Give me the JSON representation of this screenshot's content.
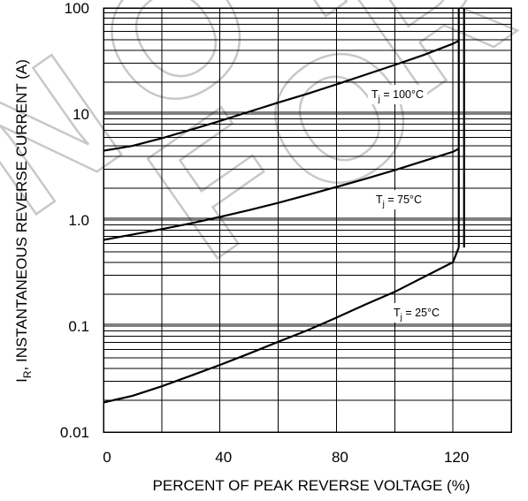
{
  "chart_data": {
    "type": "line",
    "title": "",
    "xlabel": "PERCENT OF PEAK REVERSE VOLTAGE (%)",
    "ylabel_main": "I",
    "ylabel_sub": "R",
    "ylabel_rest": ", INSTANTANEOUS REVERSE CURRENT (A)",
    "xlim": [
      0,
      140
    ],
    "ylim": [
      0.01,
      100
    ],
    "yscale": "log",
    "grid": true,
    "x_ticks": [
      {
        "value": 0,
        "label": "0"
      },
      {
        "value": 40,
        "label": "40"
      },
      {
        "value": 80,
        "label": "80"
      },
      {
        "value": 120,
        "label": "120"
      }
    ],
    "y_ticks": [
      {
        "value": 100,
        "label": "100"
      },
      {
        "value": 10,
        "label": "10"
      },
      {
        "value": 1,
        "label": "1.0"
      },
      {
        "value": 0.1,
        "label": "0.1"
      },
      {
        "value": 0.01,
        "label": "0.01"
      }
    ],
    "vertical_line_x": 122,
    "series": [
      {
        "name": "Tj = 100°C",
        "label_main": "T",
        "label_sub": "j",
        "label_rest": " = 100°C",
        "x": [
          0,
          10,
          20,
          30,
          40,
          50,
          60,
          70,
          80,
          90,
          100,
          110,
          120,
          122
        ],
        "y": [
          4.5,
          5.0,
          5.9,
          7.1,
          8.6,
          10.5,
          12.8,
          15.5,
          19,
          23.5,
          29,
          36,
          46,
          49
        ]
      },
      {
        "name": "Tj = 75°C",
        "label_main": "T",
        "label_sub": "j",
        "label_rest": " = 75°C",
        "x": [
          0,
          10,
          20,
          30,
          40,
          50,
          60,
          70,
          80,
          90,
          100,
          110,
          120,
          122
        ],
        "y": [
          0.65,
          0.73,
          0.82,
          0.93,
          1.07,
          1.24,
          1.45,
          1.72,
          2.05,
          2.45,
          2.95,
          3.6,
          4.4,
          4.7
        ]
      },
      {
        "name": "Tj = 25°C",
        "label_main": "T",
        "label_sub": "j",
        "label_rest": " = 25°C",
        "x": [
          0,
          10,
          20,
          30,
          40,
          50,
          60,
          70,
          80,
          90,
          100,
          110,
          120,
          122
        ],
        "y": [
          0.019,
          0.022,
          0.027,
          0.034,
          0.043,
          0.055,
          0.071,
          0.091,
          0.12,
          0.16,
          0.21,
          0.29,
          0.4,
          0.55
        ]
      }
    ],
    "colors": {
      "line": "#000000",
      "grid": "#000000",
      "background": "#ffffff"
    }
  },
  "watermark": [
    "N",
    "O",
    "T",
    "F",
    "O",
    "R"
  ]
}
